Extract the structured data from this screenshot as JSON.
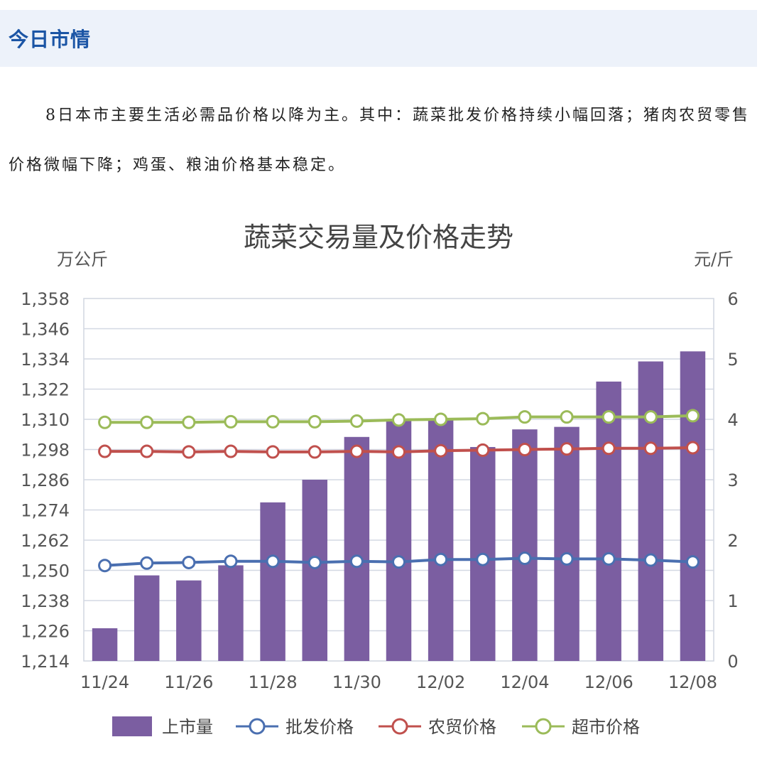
{
  "section": {
    "title": "今日市情"
  },
  "intro": "8日本市主要生活必需品价格以降为主。其中：蔬菜批发价格持续小幅回落；猪肉农贸零售价格微幅下降；鸡蛋、粮油价格基本稳定。",
  "chart_data": {
    "type": "bar",
    "title": "蔬菜交易量及价格走势",
    "y_left_unit": "万公斤",
    "y_right_unit": "元/斤",
    "categories": [
      "11/24",
      "11/25",
      "11/26",
      "11/27",
      "11/28",
      "11/29",
      "11/30",
      "12/01",
      "12/02",
      "12/03",
      "12/04",
      "12/05",
      "12/06",
      "12/07",
      "12/08"
    ],
    "x_tick_labels": [
      "11/24",
      "11/26",
      "11/28",
      "11/30",
      "12/02",
      "12/04",
      "12/06",
      "12/08"
    ],
    "y_left_ticks": [
      "1,214",
      "1,226",
      "1,238",
      "1,250",
      "1,262",
      "1,274",
      "1,286",
      "1,298",
      "1,310",
      "1,322",
      "1,334",
      "1,346",
      "1,358"
    ],
    "y_right_ticks": [
      "0",
      "1",
      "2",
      "3",
      "4",
      "5",
      "6"
    ],
    "y_left_range": [
      1214,
      1358
    ],
    "y_right_range": [
      0,
      6
    ],
    "grid": true,
    "legend_position": "bottom",
    "bars": {
      "name": "上市量",
      "color": "#7b5ea1",
      "values": [
        1227,
        1248,
        1246,
        1252,
        1277,
        1286,
        1303,
        1310,
        1310,
        1299,
        1306,
        1307,
        1325,
        1333,
        1337
      ]
    },
    "series": [
      {
        "name": "批发价格",
        "color": "#4a6fb0",
        "values": [
          1.58,
          1.62,
          1.63,
          1.65,
          1.65,
          1.63,
          1.65,
          1.64,
          1.68,
          1.68,
          1.7,
          1.69,
          1.69,
          1.67,
          1.64
        ]
      },
      {
        "name": "农贸价格",
        "color": "#c0504d",
        "values": [
          3.47,
          3.47,
          3.46,
          3.47,
          3.46,
          3.46,
          3.47,
          3.46,
          3.48,
          3.49,
          3.5,
          3.51,
          3.52,
          3.52,
          3.53
        ]
      },
      {
        "name": "超市价格",
        "color": "#9bbb59",
        "values": [
          3.95,
          3.95,
          3.95,
          3.96,
          3.96,
          3.96,
          3.97,
          3.99,
          4.0,
          4.01,
          4.04,
          4.04,
          4.04,
          4.04,
          4.06
        ]
      }
    ]
  }
}
